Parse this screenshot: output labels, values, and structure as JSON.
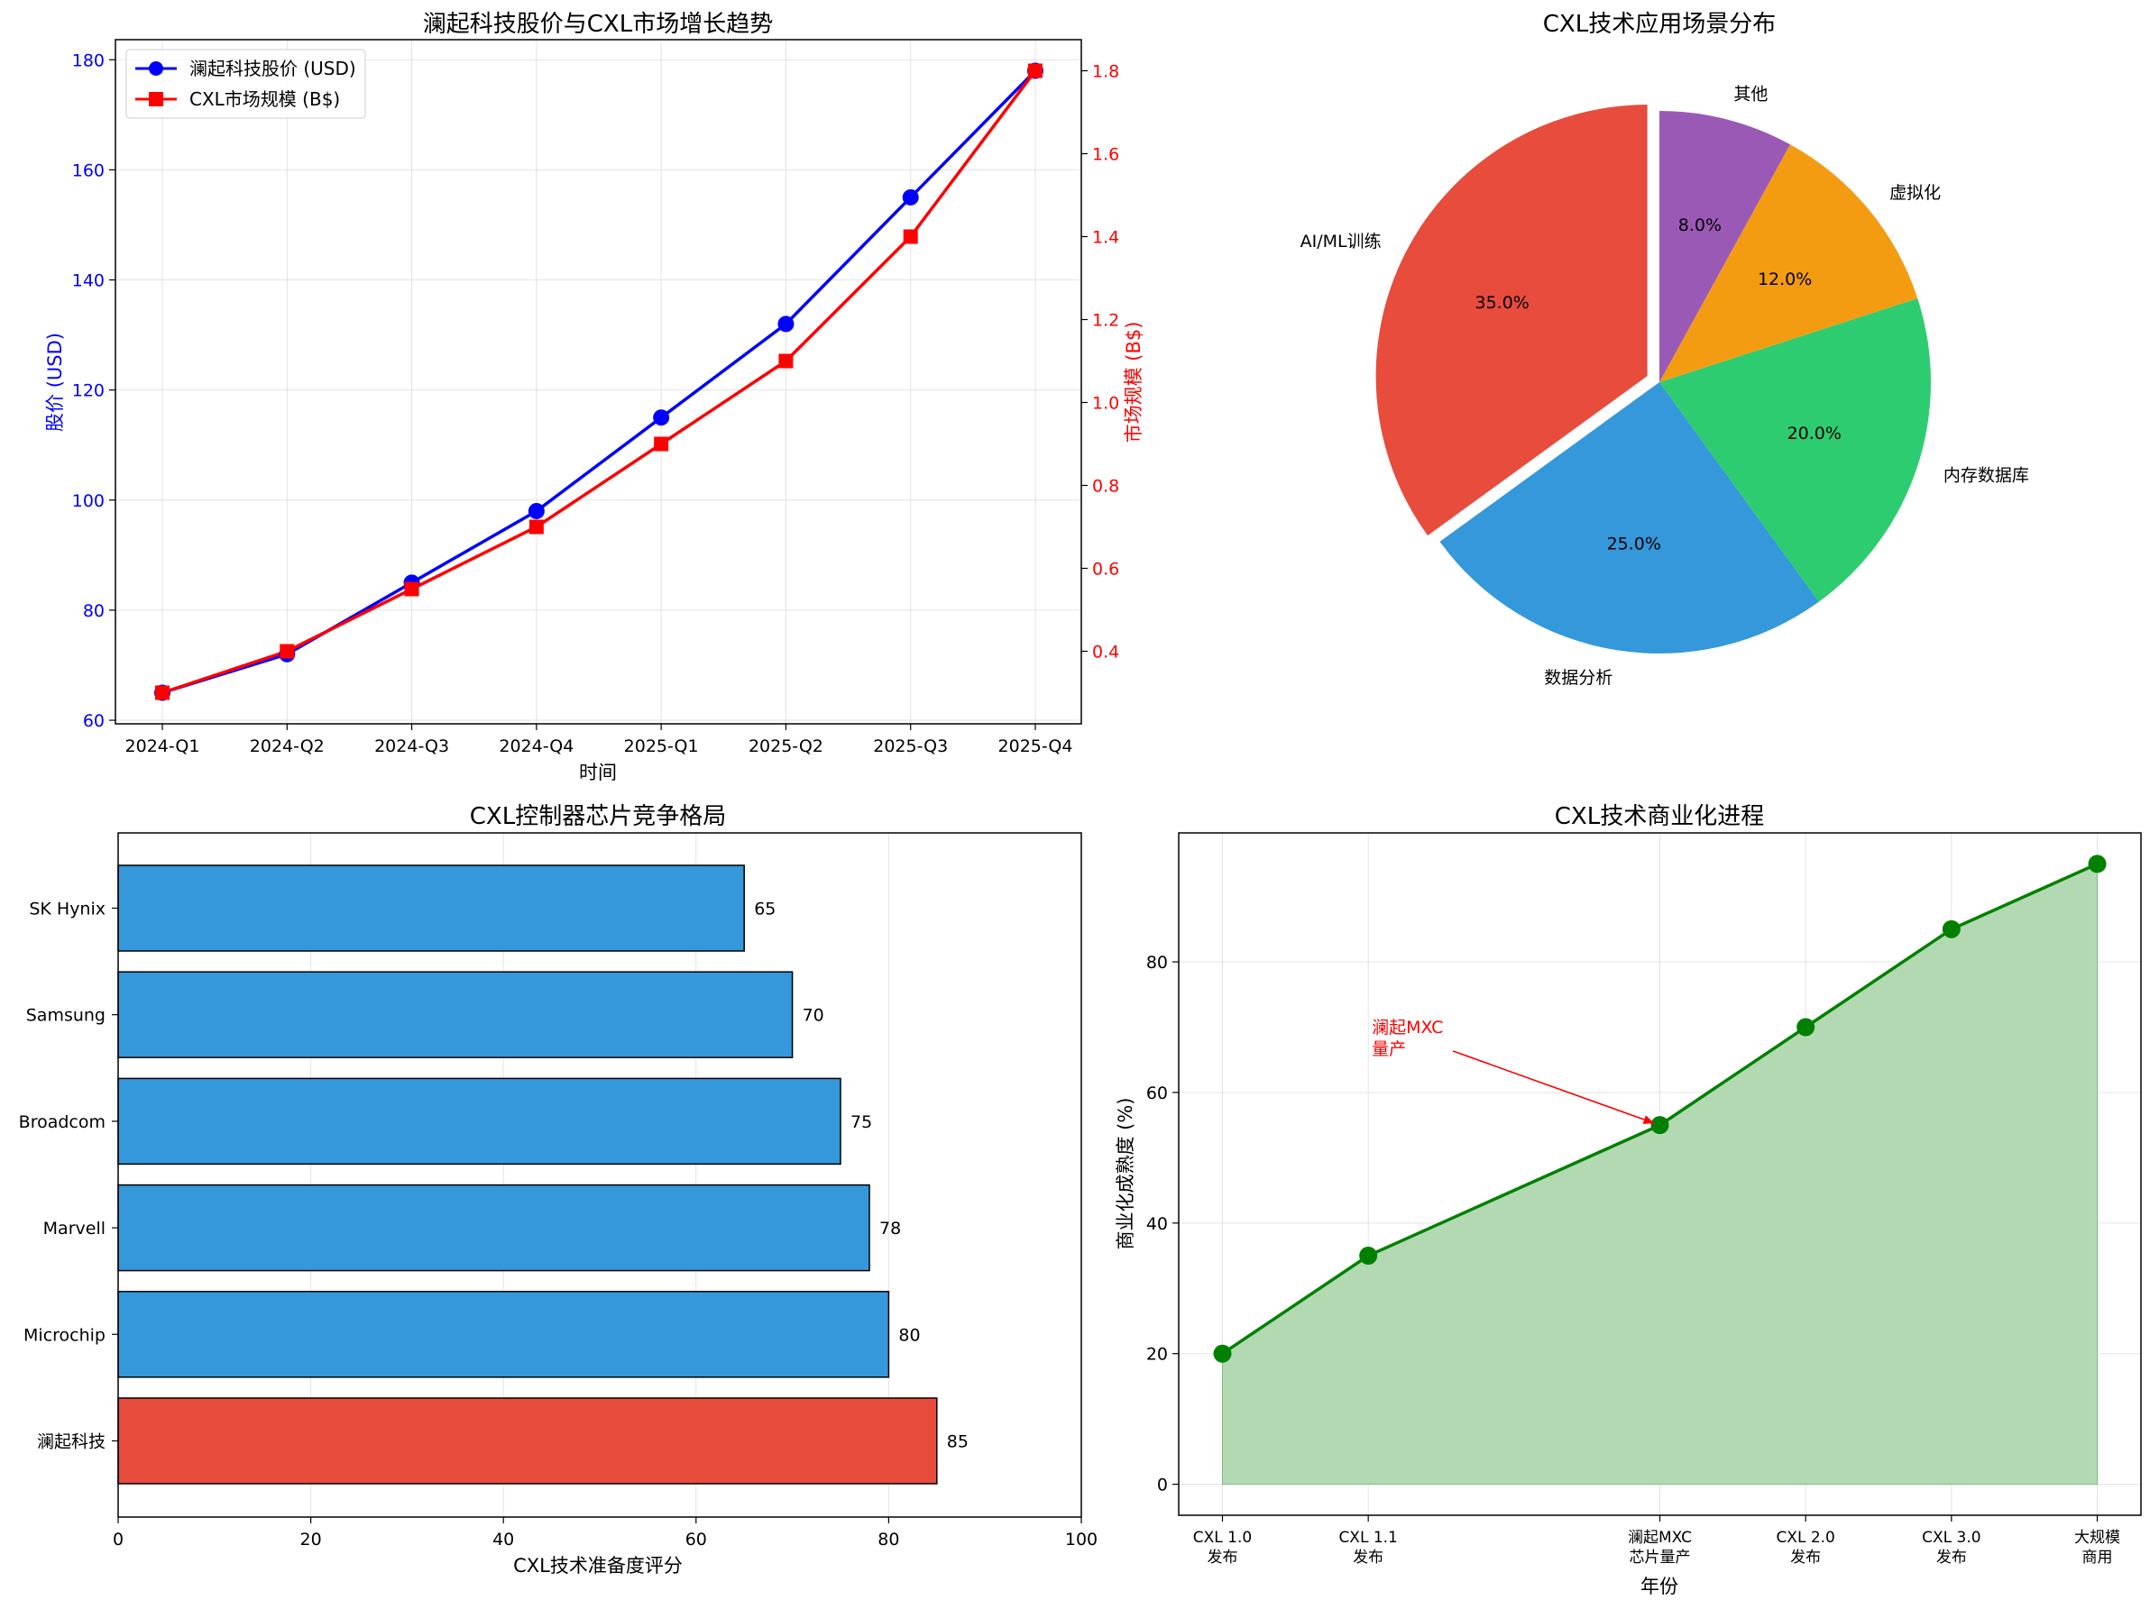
{
  "colors": {
    "stock": "#0000ff",
    "market": "#ff0000",
    "bar_default": "#3498db",
    "bar_highlight": "#e74c3c",
    "line_green": "#008000",
    "fill_green": "#b3d9b3",
    "pie": [
      "#9b59b6",
      "#e74c3c",
      "#3498db",
      "#2ecc71",
      "#f39c12"
    ]
  },
  "chart_data": [
    {
      "type": "line",
      "title": "澜起科技股价与CXL市场增长趋势",
      "xlabel": "时间",
      "ylabel": "股价 (USD)",
      "ylabel_right": "市场规模 (B$)",
      "categories": [
        "2024-Q1",
        "2024-Q2",
        "2024-Q3",
        "2024-Q4",
        "2025-Q1",
        "2025-Q2",
        "2025-Q3",
        "2025-Q4"
      ],
      "series": [
        {
          "name": "澜起科技股价 (USD)",
          "axis": "left",
          "marker": "circle",
          "values": [
            65,
            72,
            85,
            98,
            115,
            132,
            155,
            178
          ]
        },
        {
          "name": "CXL市场规模 (B$)",
          "axis": "right",
          "marker": "square",
          "values": [
            0.3,
            0.4,
            0.55,
            0.7,
            0.9,
            1.1,
            1.4,
            1.8
          ]
        }
      ],
      "ylim": [
        59.35,
        183.65
      ],
      "yticks": [
        "60",
        "80",
        "100",
        "120",
        "140",
        "160",
        "180"
      ],
      "ylim_right": [
        0.225,
        1.875
      ],
      "yticks_right": [
        "0.4",
        "0.6",
        "0.8",
        "1.0",
        "1.2",
        "1.4",
        "1.6",
        "1.8"
      ],
      "legend": "upper-left",
      "grid": true
    },
    {
      "type": "pie",
      "title": "CXL技术应用场景分布",
      "labels": [
        "AI/ML训练",
        "数据分析",
        "内存数据库",
        "虚拟化",
        "其他"
      ],
      "values": [
        35,
        25,
        20,
        12,
        8
      ],
      "pct_labels": [
        "35.0%",
        "25.0%",
        "20.0%",
        "12.0%",
        "8.0%"
      ],
      "exploded": "AI/ML训练"
    },
    {
      "type": "bar",
      "orientation": "horizontal",
      "title": "CXL控制器芯片竞争格局",
      "xlabel": "CXL技术准备度评分",
      "categories": [
        "SK Hynix",
        "Samsung",
        "Broadcom",
        "Marvell",
        "Microchip",
        "澜起科技"
      ],
      "values": [
        65,
        70,
        75,
        78,
        80,
        85
      ],
      "value_labels": [
        "65",
        "70",
        "75",
        "78",
        "80",
        "85"
      ],
      "highlight": "澜起科技",
      "xlim": [
        0,
        100
      ],
      "xticks": [
        "0",
        "20",
        "40",
        "60",
        "80",
        "100"
      ],
      "grid": true
    },
    {
      "type": "area",
      "title": "CXL技术商业化进程",
      "xlabel": "年份",
      "ylabel": "商业化成熟度 (%)",
      "x": [
        2019,
        2020,
        2022,
        2023,
        2024,
        2025
      ],
      "x_tick_labels": [
        [
          "CXL 1.0",
          "发布"
        ],
        [
          "CXL 1.1",
          "发布"
        ],
        [
          "澜起MXC",
          "芯片量产"
        ],
        [
          "CXL 2.0",
          "发布"
        ],
        [
          "CXL 3.0",
          "发布"
        ],
        [
          "大规模",
          "商用"
        ]
      ],
      "values": [
        20,
        35,
        55,
        70,
        85,
        95
      ],
      "xlim": [
        2018.7,
        2025.3
      ],
      "ylim": [
        -4.75,
        99.75
      ],
      "yticks": [
        "0",
        "20",
        "40",
        "60",
        "80"
      ],
      "annotation": {
        "text_lines": [
          "澜起MXC",
          "量产"
        ],
        "x": 2022,
        "y": 55,
        "text_x": 2020,
        "text_y": 68
      },
      "grid": true
    }
  ]
}
